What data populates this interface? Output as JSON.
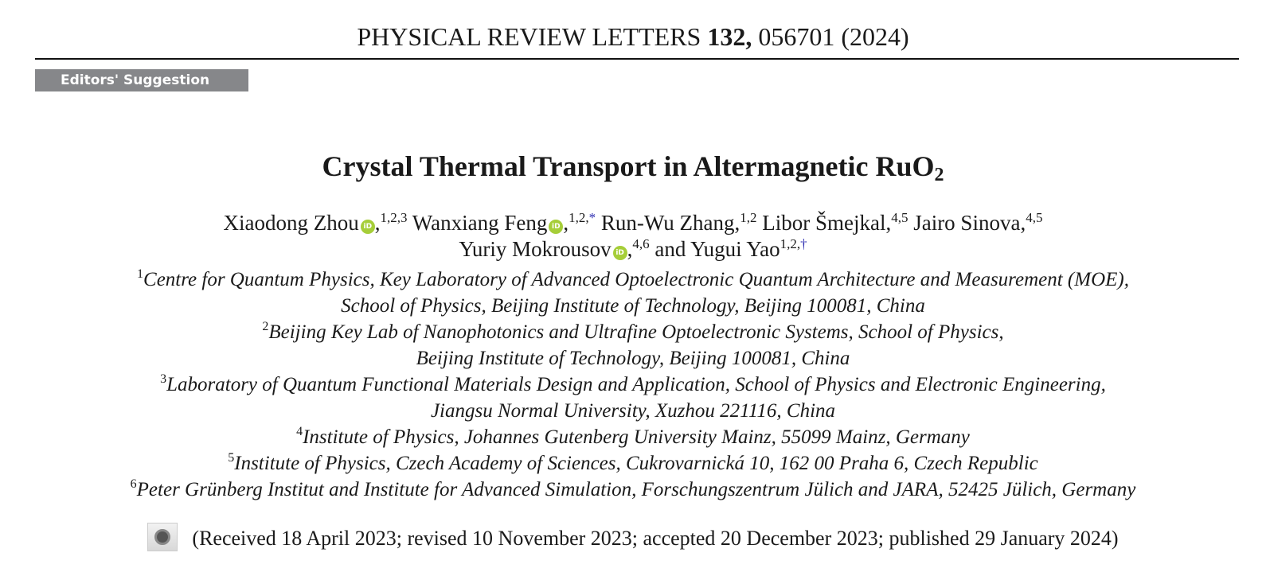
{
  "header": {
    "journal": "PHYSICAL REVIEW LETTERS",
    "volume": "132,",
    "article": "056701 (2024)"
  },
  "badge": "Editors' Suggestion",
  "title": {
    "main": "Crystal Thermal Transport in Altermagnetic RuO",
    "sub": "2"
  },
  "authors": [
    {
      "name": "Xiaodong Zhou",
      "orcid": true,
      "sup": "1,2,3",
      "mark": ""
    },
    {
      "name": "Wanxiang Feng",
      "orcid": true,
      "sup": "1,2,",
      "mark": "*"
    },
    {
      "name": "Run-Wu Zhang",
      "orcid": false,
      "sup": "1,2",
      "mark": ""
    },
    {
      "name": "Libor Šmejkal",
      "orcid": false,
      "sup": "4,5",
      "mark": ""
    },
    {
      "name": "Jairo Sinova",
      "orcid": false,
      "sup": "4,5",
      "mark": ""
    },
    {
      "name": "Yuriy Mokrousov",
      "orcid": true,
      "sup": "4,6",
      "mark": ""
    },
    {
      "name": "Yugui Yao",
      "orcid": false,
      "sup": "1,2,",
      "mark": "†"
    }
  ],
  "and": "and",
  "orcid_label": "iD",
  "affiliations": [
    {
      "sup": "1",
      "text": "Centre for Quantum Physics, Key Laboratory of Advanced Optoelectronic Quantum Architecture and Measurement (MOE),"
    },
    {
      "sup": "",
      "text": "School of Physics, Beijing Institute of Technology, Beijing 100081, China"
    },
    {
      "sup": "2",
      "text": "Beijing Key Lab of Nanophotonics and Ultrafine Optoelectronic Systems, School of Physics,"
    },
    {
      "sup": "",
      "text": "Beijing Institute of Technology, Beijing 100081, China"
    },
    {
      "sup": "3",
      "text": "Laboratory of Quantum Functional Materials Design and Application, School of Physics and Electronic Engineering,"
    },
    {
      "sup": "",
      "text": "Jiangsu Normal University, Xuzhou 221116, China"
    },
    {
      "sup": "4",
      "text": "Institute of Physics, Johannes Gutenberg University Mainz, 55099 Mainz, Germany"
    },
    {
      "sup": "5",
      "text": "Institute of Physics, Czech Academy of Sciences, Cukrovarnická 10, 162 00 Praha 6, Czech Republic"
    },
    {
      "sup": "6",
      "text": "Peter Grünberg Institut and Institute for Advanced Simulation, Forschungszentrum Jülich and JARA, 52425 Jülich, Germany"
    }
  ],
  "received": "(Received 18 April 2023; revised 10 November 2023; accepted 20 December 2023; published 29 January 2024)"
}
